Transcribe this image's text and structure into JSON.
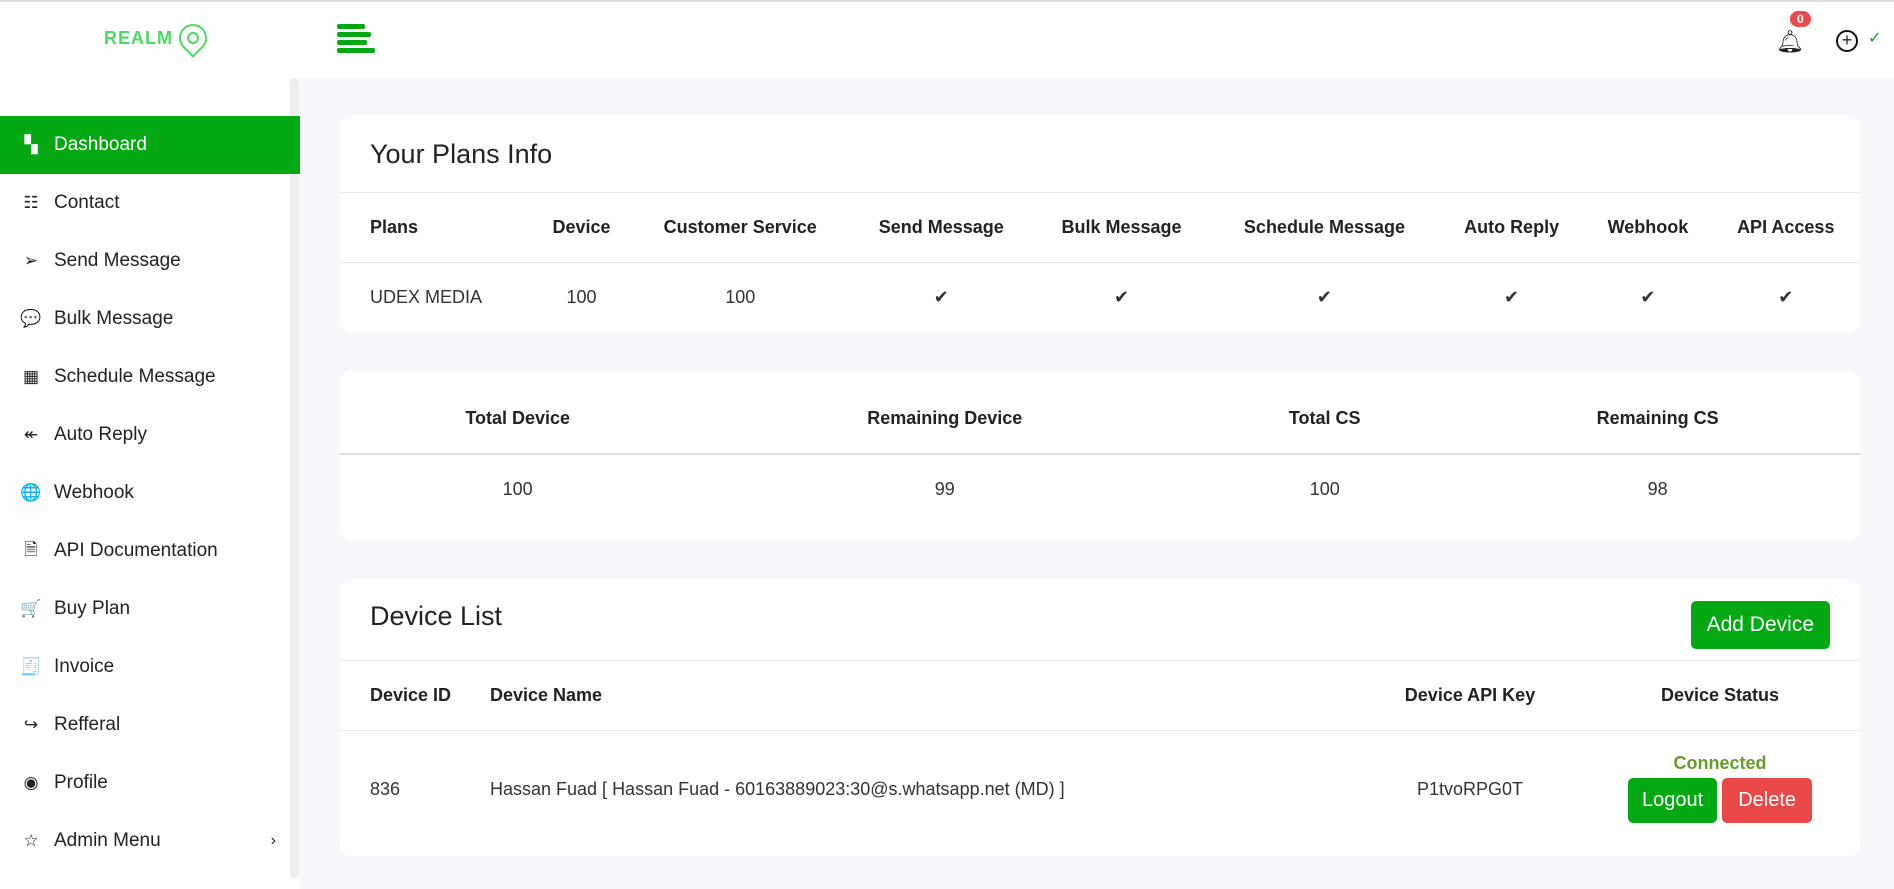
{
  "header": {
    "logo": "REALM",
    "notification_count": "0"
  },
  "sidebar": {
    "items": [
      {
        "label": "Dashboard",
        "icon": "dashboard-icon",
        "glyph": "▚"
      },
      {
        "label": "Contact",
        "icon": "contact-card-icon",
        "glyph": "☷"
      },
      {
        "label": "Send Message",
        "icon": "send-icon",
        "glyph": "➢"
      },
      {
        "label": "Bulk Message",
        "icon": "chat-bubbles-icon",
        "glyph": "💬"
      },
      {
        "label": "Schedule Message",
        "icon": "calendar-icon",
        "glyph": "▦"
      },
      {
        "label": "Auto Reply",
        "icon": "reply-all-icon",
        "glyph": "↞"
      },
      {
        "label": "Webhook",
        "icon": "globe-icon",
        "glyph": "🌐"
      },
      {
        "label": "API Documentation",
        "icon": "document-icon",
        "glyph": "🗎"
      },
      {
        "label": "Buy Plan",
        "icon": "cart-icon",
        "glyph": "🛒"
      },
      {
        "label": "Invoice",
        "icon": "invoice-icon",
        "glyph": "🧾"
      },
      {
        "label": "Refferal",
        "icon": "share-icon",
        "glyph": "↪"
      },
      {
        "label": "Profile",
        "icon": "user-circle-icon",
        "glyph": "◉"
      },
      {
        "label": "Admin Menu",
        "icon": "star-icon",
        "glyph": "☆"
      }
    ]
  },
  "plans": {
    "title": "Your Plans Info",
    "headers": [
      "Plans",
      "Device",
      "Customer Service",
      "Send Message",
      "Bulk Message",
      "Schedule Message",
      "Auto Reply",
      "Webhook",
      "API Access"
    ],
    "row": [
      "UDEX MEDIA",
      "100",
      "100",
      "✔",
      "✔",
      "✔",
      "✔",
      "✔",
      "✔"
    ]
  },
  "stats": {
    "headers": [
      "Total Device",
      "Remaining Device",
      "Total CS",
      "Remaining CS"
    ],
    "values": [
      "100",
      "99",
      "100",
      "98"
    ]
  },
  "devices": {
    "title": "Device List",
    "add_label": "Add Device",
    "headers": [
      "Device ID",
      "Device Name",
      "Device API Key",
      "Device Status"
    ],
    "rows": [
      {
        "id": "836",
        "name": "Hassan Fuad [ Hassan Fuad - 60163889023:30@s.whatsapp.net (MD) ]",
        "api_key": "P1tvoRPG0T",
        "status": "Connected",
        "logout": "Logout",
        "delete": "Delete"
      }
    ]
  },
  "colors": {
    "brand": "#03a812",
    "danger": "#e84848"
  }
}
